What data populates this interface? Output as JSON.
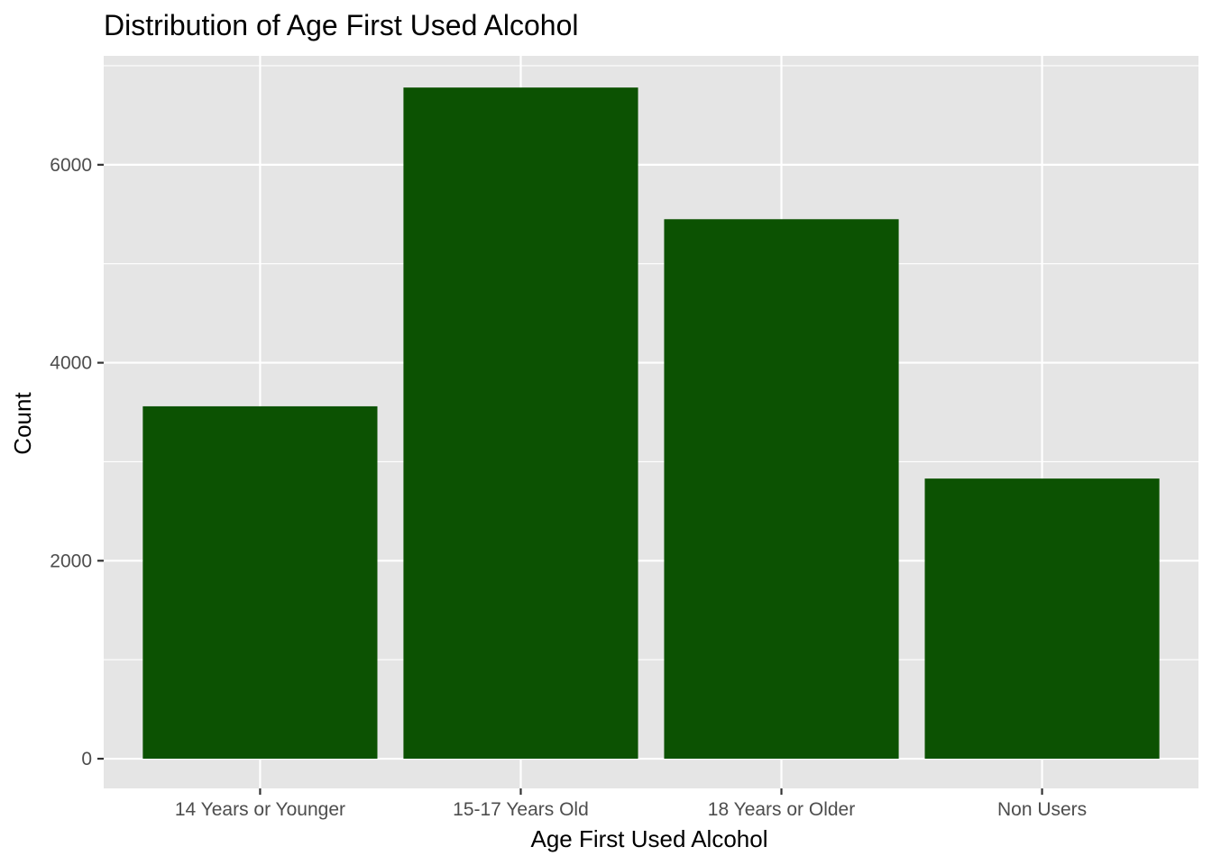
{
  "chart_data": {
    "type": "bar",
    "title": "Distribution of Age First Used Alcohol",
    "xlabel": "Age First Used Alcohol",
    "ylabel": "Count",
    "categories": [
      "14 Years or Younger",
      "15-17 Years Old",
      "18 Years or Older",
      "Non Users"
    ],
    "values": [
      3560,
      6780,
      5450,
      2830
    ],
    "ylim": [
      -300,
      7100
    ],
    "yticks": [
      0,
      2000,
      4000,
      6000
    ],
    "ytick_labels": [
      "0",
      "2000",
      "4000",
      "6000"
    ],
    "grid": true,
    "bar_color": "#0c5202",
    "panel_background": "#e5e5e5",
    "grid_color": "#ffffff"
  }
}
